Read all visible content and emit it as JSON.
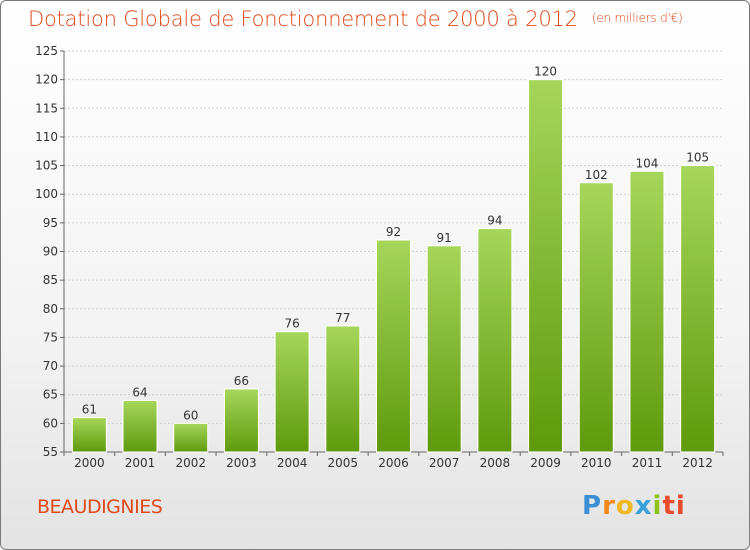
{
  "header": {
    "title": "Dotation Globale de Fonctionnement de 2000 à 2012",
    "unit": "(en milliers d'€)"
  },
  "footer": {
    "commune": "BEAUDIGNIES",
    "logo_parts": [
      "P",
      "r",
      "o",
      "x",
      "i",
      "ti"
    ]
  },
  "colors": {
    "bar_top": "#a6d65a",
    "bar_bottom": "#5e9a0c",
    "accent": "#e04a1a"
  },
  "chart_data": {
    "type": "bar",
    "title": "Dotation Globale de Fonctionnement de 2000 à 2012",
    "subtitle": "(en milliers d'€)",
    "categories": [
      "2000",
      "2001",
      "2002",
      "2003",
      "2004",
      "2005",
      "2006",
      "2007",
      "2008",
      "2009",
      "2010",
      "2011",
      "2012"
    ],
    "values": [
      61,
      64,
      60,
      66,
      76,
      77,
      92,
      91,
      94,
      120,
      102,
      104,
      105
    ],
    "ylim": [
      55,
      125
    ],
    "yticks": [
      55,
      60,
      65,
      70,
      75,
      80,
      85,
      90,
      95,
      100,
      105,
      110,
      115,
      120,
      125
    ],
    "grid": true
  }
}
